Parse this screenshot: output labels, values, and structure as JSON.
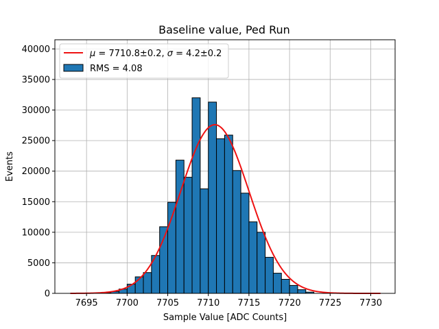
{
  "chart_data": {
    "type": "bar",
    "title": "Baseline value, Ped Run",
    "xlabel": "Sample Value [ADC Counts]",
    "ylabel": "Events",
    "xlim": [
      7691.1,
      7733.0
    ],
    "ylim": [
      0,
      41500
    ],
    "xticks": [
      7695,
      7700,
      7705,
      7710,
      7715,
      7720,
      7725,
      7730
    ],
    "yticks": [
      0,
      5000,
      10000,
      15000,
      20000,
      25000,
      30000,
      35000,
      40000
    ],
    "grid": true,
    "legend_position": "top-left",
    "histogram": {
      "label": "RMS = 4.08",
      "color": "#1f77b4",
      "edgecolor": "#000000",
      "bin_width": 1.0,
      "bins": [
        {
          "x0": 7697.0,
          "count": 100
        },
        {
          "x0": 7698.0,
          "count": 300
        },
        {
          "x0": 7699.0,
          "count": 700
        },
        {
          "x0": 7700.0,
          "count": 1500
        },
        {
          "x0": 7701.0,
          "count": 2700
        },
        {
          "x0": 7702.0,
          "count": 3400
        },
        {
          "x0": 7703.0,
          "count": 6200
        },
        {
          "x0": 7704.0,
          "count": 10900
        },
        {
          "x0": 7705.0,
          "count": 14900
        },
        {
          "x0": 7706.0,
          "count": 21800
        },
        {
          "x0": 7707.0,
          "count": 19000
        },
        {
          "x0": 7708.0,
          "count": 32000
        },
        {
          "x0": 7709.0,
          "count": 17100
        },
        {
          "x0": 7710.0,
          "count": 31300
        },
        {
          "x0": 7711.0,
          "count": 25300
        },
        {
          "x0": 7712.0,
          "count": 25900
        },
        {
          "x0": 7713.0,
          "count": 20100
        },
        {
          "x0": 7714.0,
          "count": 16400
        },
        {
          "x0": 7715.0,
          "count": 11700
        },
        {
          "x0": 7716.0,
          "count": 10000
        },
        {
          "x0": 7717.0,
          "count": 5900
        },
        {
          "x0": 7718.0,
          "count": 3300
        },
        {
          "x0": 7719.0,
          "count": 2300
        },
        {
          "x0": 7720.0,
          "count": 1300
        },
        {
          "x0": 7721.0,
          "count": 600
        },
        {
          "x0": 7722.0,
          "count": 200
        }
      ]
    },
    "fit": {
      "type": "gaussian",
      "color": "#ee1111",
      "mu": 7710.8,
      "mu_err": 0.2,
      "sigma": 4.2,
      "sigma_err": 0.2,
      "amplitude": 27600,
      "x_range": [
        7693.0,
        7731.2
      ],
      "legend_prefix_mu": "μ",
      "legend_text_mu": " = 7710.8±0.2, ",
      "legend_prefix_sigma": "σ",
      "legend_text_sigma": " = 4.2±0.2"
    }
  }
}
